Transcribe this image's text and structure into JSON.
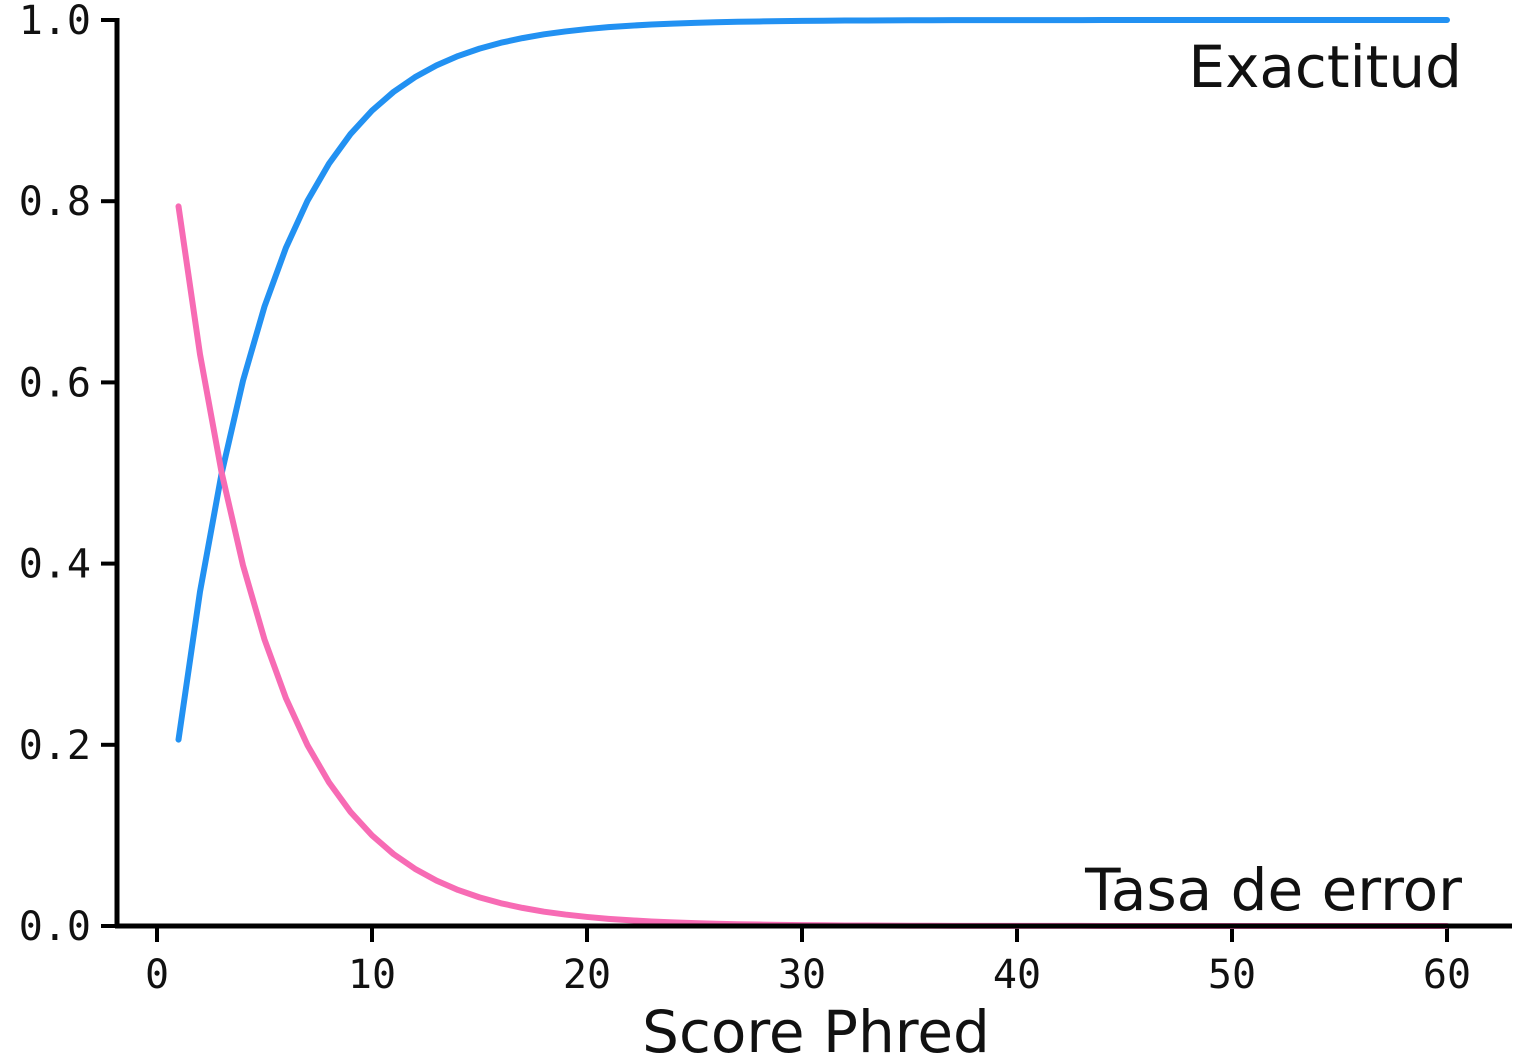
{
  "chart_data": {
    "type": "line",
    "title": "",
    "xlabel": "Score Phred",
    "ylabel": "",
    "xlim": [
      -2,
      63
    ],
    "ylim": [
      0,
      1.0
    ],
    "x_ticks": [
      0,
      10,
      20,
      30,
      40,
      50,
      60
    ],
    "y_ticks": [
      0.0,
      0.2,
      0.4,
      0.6,
      0.8,
      1.0
    ],
    "x_tick_labels": [
      "0",
      "10",
      "20",
      "30",
      "40",
      "50",
      "60"
    ],
    "y_tick_labels": [
      "0.0",
      "0.2",
      "0.4",
      "0.6",
      "0.8",
      "1.0"
    ],
    "grid": false,
    "legend": "inline labels",
    "series": [
      {
        "name": "Exactitud",
        "color": "#2291f2",
        "x": [
          1,
          2,
          3,
          4,
          5,
          6,
          7,
          8,
          9,
          10,
          11,
          12,
          13,
          14,
          15,
          16,
          17,
          18,
          19,
          20,
          21,
          22,
          23,
          24,
          25,
          26,
          27,
          28,
          29,
          30,
          31,
          32,
          33,
          34,
          35,
          36,
          37,
          38,
          39,
          40,
          41,
          42,
          43,
          44,
          45,
          46,
          47,
          48,
          49,
          50,
          51,
          52,
          53,
          54,
          55,
          56,
          57,
          58,
          59,
          60
        ],
        "values": [
          0.2057,
          0.369,
          0.4988,
          0.6019,
          0.6838,
          0.7488,
          0.8005,
          0.8415,
          0.8741,
          0.9,
          0.9206,
          0.9369,
          0.9499,
          0.9602,
          0.9684,
          0.9749,
          0.98,
          0.9842,
          0.9874,
          0.99,
          0.9921,
          0.9937,
          0.995,
          0.996,
          0.9968,
          0.9975,
          0.998,
          0.9984,
          0.9987,
          0.999,
          0.9992,
          0.9994,
          0.9995,
          0.9996,
          0.9997,
          0.9997,
          0.9998,
          0.9998,
          0.9999,
          0.9999,
          0.9999,
          0.9999,
          0.9999,
          1.0,
          1.0,
          1.0,
          1.0,
          1.0,
          1.0,
          1.0,
          1.0,
          1.0,
          1.0,
          1.0,
          1.0,
          1.0,
          1.0,
          1.0,
          1.0,
          1.0
        ]
      },
      {
        "name": "Tasa de error",
        "color": "#f76bb4",
        "x": [
          1,
          2,
          3,
          4,
          5,
          6,
          7,
          8,
          9,
          10,
          11,
          12,
          13,
          14,
          15,
          16,
          17,
          18,
          19,
          20,
          21,
          22,
          23,
          24,
          25,
          26,
          27,
          28,
          29,
          30,
          31,
          32,
          33,
          34,
          35,
          36,
          37,
          38,
          39,
          40,
          41,
          42,
          43,
          44,
          45,
          46,
          47,
          48,
          49,
          50,
          51,
          52,
          53,
          54,
          55,
          56,
          57,
          58,
          59,
          60
        ],
        "values": [
          0.7943,
          0.631,
          0.5012,
          0.3981,
          0.3162,
          0.2512,
          0.1995,
          0.1585,
          0.1259,
          0.1,
          0.0794,
          0.0631,
          0.0501,
          0.0398,
          0.0316,
          0.0251,
          0.02,
          0.0158,
          0.0126,
          0.01,
          0.0079,
          0.0063,
          0.005,
          0.004,
          0.0032,
          0.0025,
          0.002,
          0.0016,
          0.0013,
          0.001,
          0.0008,
          0.0006,
          0.0005,
          0.0004,
          0.0003,
          0.0003,
          0.0002,
          0.0002,
          0.0001,
          0.0001,
          0.0001,
          0.0001,
          0.0001,
          0.0,
          0.0,
          0.0,
          0.0,
          0.0,
          0.0,
          0.0,
          0.0,
          0.0,
          0.0,
          0.0,
          0.0,
          0.0,
          0.0,
          0.0,
          0.0,
          0.0
        ]
      }
    ]
  }
}
